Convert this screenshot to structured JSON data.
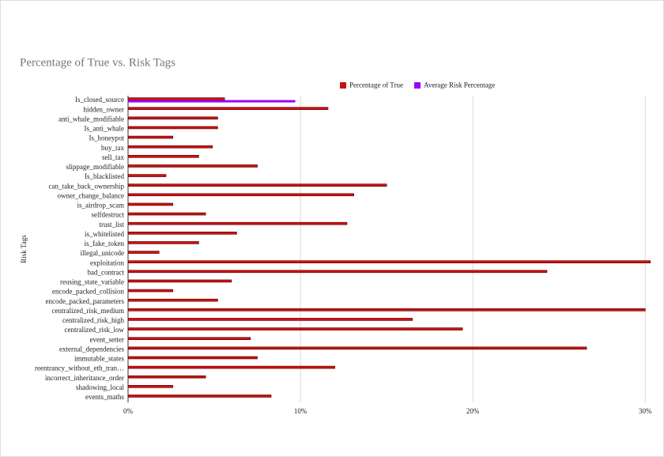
{
  "chart_data": {
    "type": "hbar",
    "title": "Percentage of True vs. Risk Tags",
    "y_label": "Risk Tags",
    "categories": [
      "Is_closed_source",
      "hidden_owner",
      "anti_whale_modifiable",
      "Is_anti_whale",
      "Is_honeypot",
      "buy_tax",
      "sell_tax",
      "slippage_modifiable",
      "Is_blacklisted",
      "can_take_back_ownership",
      "owner_change_balance",
      "is_airdrop_scam",
      "selfdestruct",
      "trust_list",
      "is_whitelisted",
      "is_fake_token",
      "illegal_unicode",
      "exploitation",
      "bad_contract",
      "reusing_state_variable",
      "encode_packed_collision",
      "encode_packed_parameters",
      "centralized_risk_medium",
      "centralized_risk_high",
      "centralized_risk_low",
      "event_setter",
      "external_dependencies",
      "immutable_states",
      "reentrancy_without_eth_tran…",
      "incorrect_inheritance_order",
      "shadowing_local",
      "events_maths"
    ],
    "series": [
      {
        "name": "Percentage of True",
        "color": "#cc1111",
        "values": [
          5.6,
          11.6,
          5.2,
          5.2,
          2.6,
          4.9,
          4.1,
          7.5,
          2.2,
          15.0,
          13.1,
          2.6,
          4.5,
          12.7,
          6.3,
          4.1,
          1.8,
          30.3,
          24.3,
          6.0,
          2.6,
          5.2,
          30.0,
          16.5,
          19.4,
          7.1,
          26.6,
          7.5,
          12.0,
          4.5,
          2.6,
          8.3
        ]
      },
      {
        "name": "Average Risk Percentage",
        "color": "#9900ff",
        "values": [
          9.7,
          null,
          null,
          null,
          null,
          null,
          null,
          null,
          null,
          null,
          null,
          null,
          null,
          null,
          null,
          null,
          null,
          null,
          null,
          null,
          null,
          null,
          null,
          null,
          null,
          null,
          null,
          null,
          null,
          null,
          null,
          null
        ]
      }
    ],
    "xlim": [
      0,
      30.4
    ],
    "xticks": [
      {
        "value": 0,
        "label": "0%"
      },
      {
        "value": 10,
        "label": "10%"
      },
      {
        "value": 20,
        "label": "20%"
      },
      {
        "value": 30,
        "label": "30%"
      }
    ],
    "grid": true,
    "legend": "top"
  }
}
